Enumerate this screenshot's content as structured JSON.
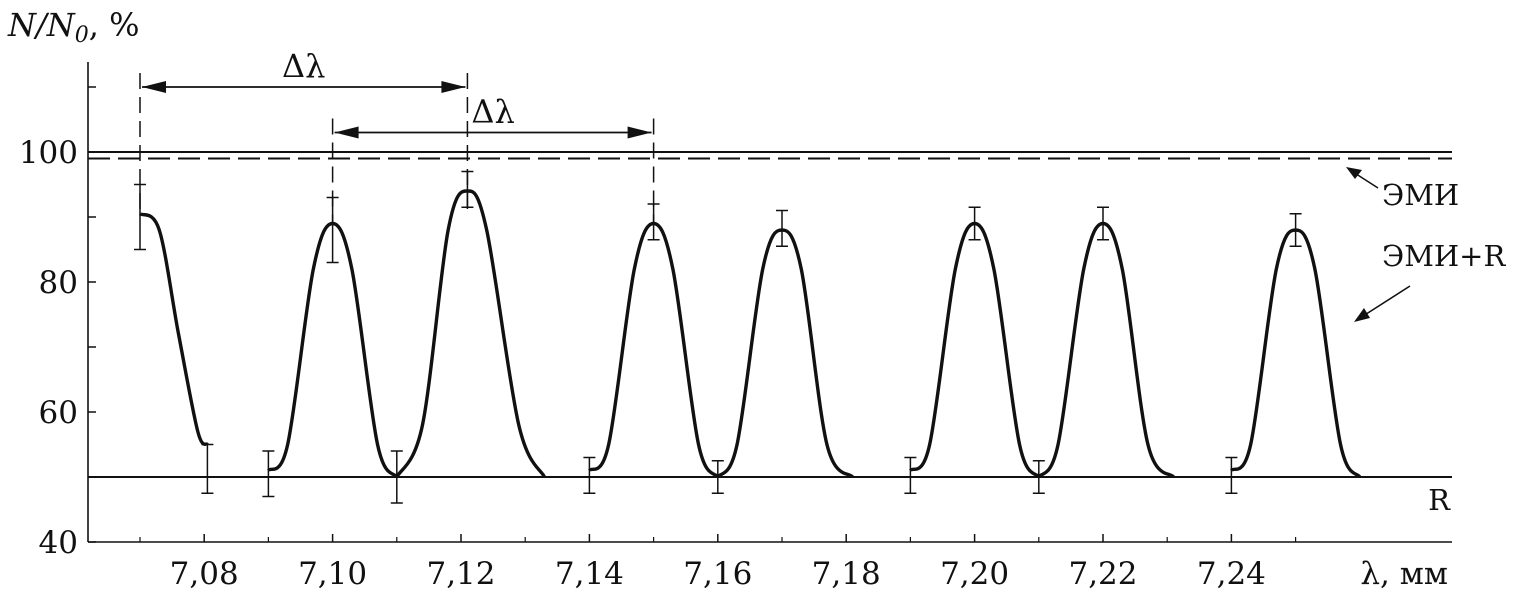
{
  "chart_data": {
    "type": "line",
    "ylabel": "N/N0, %",
    "xlabel": "λ, мм",
    "xlim": [
      7.06,
      7.265
    ],
    "ylim": [
      40,
      115
    ],
    "x_ticks": [
      7.08,
      7.1,
      7.12,
      7.14,
      7.16,
      7.18,
      7.2,
      7.22,
      7.24
    ],
    "x_tick_labels": [
      "7,08",
      "7,10",
      "7,12",
      "7,14",
      "7,16",
      "7,18",
      "7,20",
      "7,22",
      "7,24"
    ],
    "y_ticks": [
      40,
      50,
      60,
      70,
      80,
      90,
      100,
      110
    ],
    "y_tick_labels": [
      "40",
      "",
      "60",
      "",
      "80",
      "",
      "100",
      ""
    ],
    "reference_lines": [
      {
        "label": "R",
        "y": 50,
        "style": "solid"
      },
      {
        "label": "",
        "y": 100,
        "style": "solid"
      },
      {
        "label": "ЭМИ",
        "y": 99,
        "style": "dashed"
      }
    ],
    "curve_label": "ЭМИ+R",
    "segments": [
      {
        "x": [
          7.07,
          7.073,
          7.076,
          7.079,
          7.0805
        ],
        "y": [
          90.5,
          88,
          72,
          57,
          55
        ]
      },
      {
        "x": [
          7.09,
          7.093,
          7.097,
          7.1,
          7.103,
          7.107,
          7.11
        ],
        "y": [
          51,
          55,
          82,
          89,
          82,
          55,
          50
        ]
      },
      {
        "x": [
          7.11,
          7.114,
          7.118,
          7.121,
          7.124,
          7.129,
          7.133
        ],
        "y": [
          50,
          58,
          88,
          94,
          88,
          58,
          50
        ]
      },
      {
        "x": [
          7.14,
          7.143,
          7.147,
          7.15,
          7.153,
          7.157,
          7.16
        ],
        "y": [
          51,
          55,
          82,
          89,
          82,
          55,
          50
        ]
      },
      {
        "x": [
          7.16,
          7.163,
          7.167,
          7.17,
          7.173,
          7.177,
          7.181
        ],
        "y": [
          50,
          55,
          82,
          88,
          82,
          55,
          50
        ]
      },
      {
        "x": [
          7.19,
          7.193,
          7.197,
          7.2,
          7.203,
          7.207,
          7.21
        ],
        "y": [
          51,
          55,
          82,
          89,
          82,
          55,
          50
        ]
      },
      {
        "x": [
          7.21,
          7.213,
          7.217,
          7.22,
          7.223,
          7.227,
          7.231
        ],
        "y": [
          50,
          55,
          82,
          89,
          82,
          55,
          50
        ]
      },
      {
        "x": [
          7.24,
          7.243,
          7.247,
          7.25,
          7.253,
          7.257,
          7.26
        ],
        "y": [
          51,
          55,
          82,
          88,
          82,
          55,
          50
        ]
      }
    ],
    "error_bars": [
      {
        "x": 7.07,
        "y": 90.5,
        "low": 85,
        "high": 95
      },
      {
        "x": 7.0805,
        "y": 55,
        "low": 47.5,
        "high": 55
      },
      {
        "x": 7.09,
        "y": 51,
        "low": 47,
        "high": 54
      },
      {
        "x": 7.1,
        "y": 89,
        "low": 83,
        "high": 93
      },
      {
        "x": 7.11,
        "y": 50,
        "low": 46,
        "high": 54
      },
      {
        "x": 7.121,
        "y": 94,
        "low": 91.5,
        "high": 97
      },
      {
        "x": 7.14,
        "y": 51,
        "low": 47.5,
        "high": 53
      },
      {
        "x": 7.15,
        "y": 89,
        "low": 86.5,
        "high": 92
      },
      {
        "x": 7.16,
        "y": 50,
        "low": 47.5,
        "high": 52.5
      },
      {
        "x": 7.17,
        "y": 88,
        "low": 85.5,
        "high": 91
      },
      {
        "x": 7.19,
        "y": 51,
        "low": 47.5,
        "high": 53
      },
      {
        "x": 7.2,
        "y": 89,
        "low": 86.5,
        "high": 91.5
      },
      {
        "x": 7.21,
        "y": 50,
        "low": 47.5,
        "high": 52.5
      },
      {
        "x": 7.22,
        "y": 89,
        "low": 86.5,
        "high": 91.5
      },
      {
        "x": 7.24,
        "y": 51,
        "low": 47.5,
        "high": 53
      },
      {
        "x": 7.25,
        "y": 88,
        "low": 85.5,
        "high": 90.5
      }
    ],
    "annotations": [
      {
        "label": "Δλ",
        "x_from": 7.07,
        "x_to": 7.121,
        "y": 110
      },
      {
        "label": "Δλ",
        "x_from": 7.1,
        "x_to": 7.15,
        "y": 103
      }
    ],
    "grid": false
  }
}
